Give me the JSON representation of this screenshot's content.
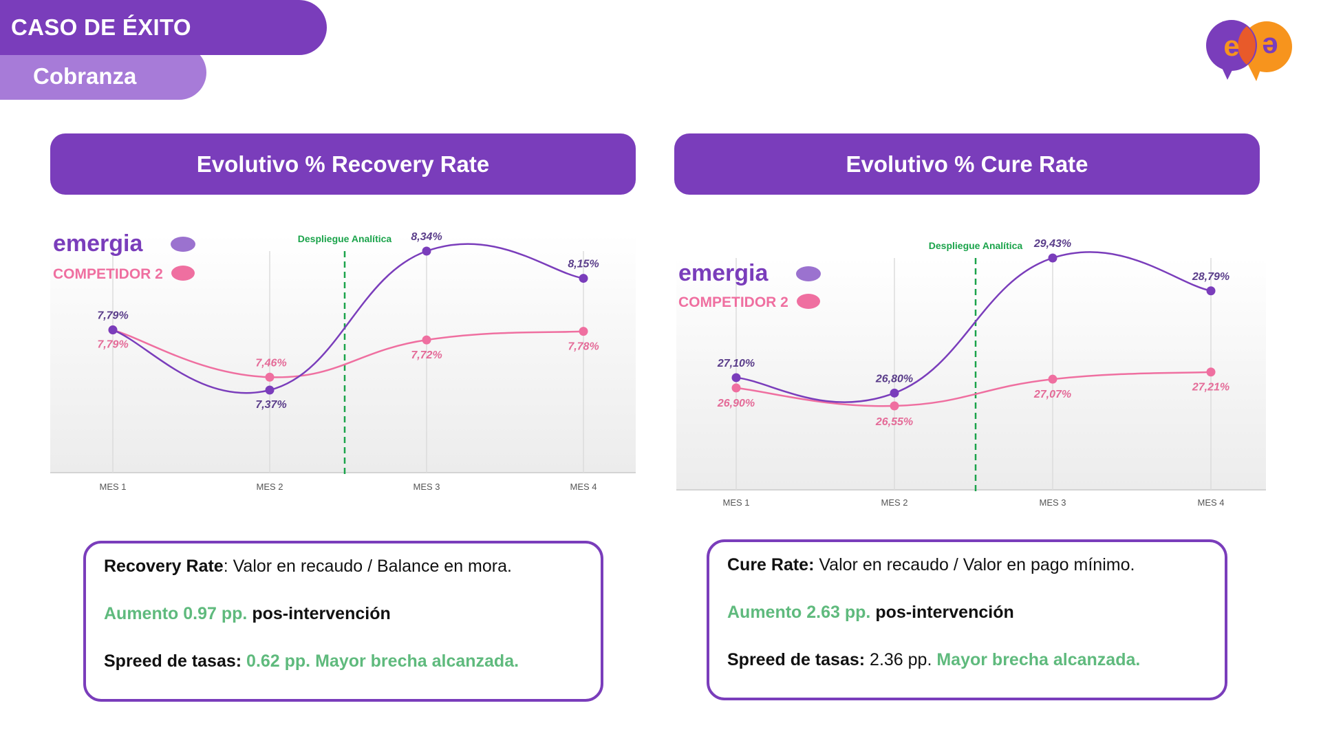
{
  "header": {
    "title": "CASO DE ÉXITO",
    "subtitle": "Cobranza"
  },
  "logo": {
    "letters": [
      "e",
      "e"
    ],
    "colors": [
      "#7a3dbb",
      "#f7941d"
    ]
  },
  "panels": [
    {
      "title": "Evolutivo % Recovery Rate",
      "info": {
        "line1_bold": "Recovery Rate",
        "line1_text": ": Valor en recaudo / Balance en mora.",
        "line2_green": "Aumento 0.97 pp.",
        "line2_bold": " pos-intervención",
        "line3_bold": "Spreed de tasas:",
        "line3_value": " 0.62 pp.",
        "line3_green": " Mayor brecha alcanzada."
      }
    },
    {
      "title": "Evolutivo % Cure Rate",
      "info": {
        "line1_bold": "Cure Rate:",
        "line1_text": " Valor en recaudo / Valor en pago mínimo.",
        "line2_green": "Aumento 2.63 pp.",
        "line2_bold": " pos-intervención",
        "line3_bold": "Spreed de tasas:",
        "line3_value": " 2.36 pp.",
        "line3_green": " Mayor brecha alcanzada."
      }
    }
  ],
  "chart_data": [
    {
      "type": "line",
      "categories": [
        "MES 1",
        "MES 2",
        "MES 3",
        "MES 4"
      ],
      "series": [
        {
          "name": "emergia",
          "values": [
            7.79,
            7.37,
            8.34,
            8.15
          ],
          "labels": [
            "7,79%",
            "7,37%",
            "8,34%",
            "8,15%"
          ],
          "color": "#7a3dbb"
        },
        {
          "name": "COMPETIDOR 2",
          "values": [
            7.79,
            7.46,
            7.72,
            7.78
          ],
          "labels": [
            "7,79%",
            "7,46%",
            "7,72%",
            "7,78%"
          ],
          "color": "#ef6fa0"
        }
      ],
      "annotation": {
        "label": "Despliegue Analítica",
        "between": [
          "MES 2",
          "MES 3"
        ],
        "color": "#1aa34a"
      },
      "legend": "top-left",
      "grid": false
    },
    {
      "type": "line",
      "categories": [
        "MES 1",
        "MES 2",
        "MES 3",
        "MES 4"
      ],
      "series": [
        {
          "name": "emergia",
          "values": [
            27.1,
            26.8,
            29.43,
            28.79
          ],
          "labels": [
            "27,10%",
            "26,80%",
            "29,43%",
            "28,79%"
          ],
          "color": "#7a3dbb"
        },
        {
          "name": "COMPETIDOR 2",
          "values": [
            26.9,
            26.55,
            27.07,
            27.21
          ],
          "labels": [
            "26,90%",
            "26,55%",
            "27,07%",
            "27,21%"
          ],
          "color": "#ef6fa0"
        }
      ],
      "annotation": {
        "label": "Despliegue Analítica",
        "between": [
          "MES 2",
          "MES 3"
        ],
        "color": "#1aa34a"
      },
      "legend": "top-left",
      "grid": false
    }
  ]
}
